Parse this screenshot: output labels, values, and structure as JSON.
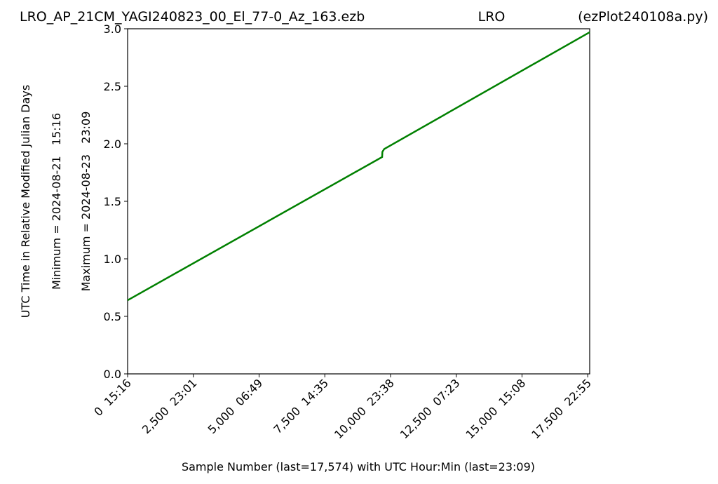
{
  "chart_data": {
    "type": "line",
    "title": "LRO_AP_21CM_YAGI240823_00_El_77-0_Az_163.ezb",
    "subtitle": "LRO",
    "annotations": [
      "(ezPlot240108a.py)"
    ],
    "xlabel": "Sample Number (last=17,574) with UTC Hour:Min (last=23:09)",
    "ylabel": "UTC Time in Relative Modified Julian Days",
    "ylabel_lines": [
      "Minimum = 2024-08-21   15:16",
      "Maximum = 2024-08-23   23:09"
    ],
    "x": [
      0,
      9680,
      9690,
      9760,
      17574
    ],
    "values": [
      0.64,
      1.885,
      1.93,
      1.955,
      2.97
    ],
    "color": "#008000",
    "xlim": [
      0,
      17574
    ],
    "xticks": [
      {
        "value": 0,
        "label": "0  15:16"
      },
      {
        "value": 2500,
        "label": "2,500  23:01"
      },
      {
        "value": 5000,
        "label": "5,000  06:49"
      },
      {
        "value": 7500,
        "label": "7,500  14:35"
      },
      {
        "value": 10000,
        "label": "10,000  23:38"
      },
      {
        "value": 12500,
        "label": "12,500  07:23"
      },
      {
        "value": 15000,
        "label": "15,000  15:08"
      },
      {
        "value": 17500,
        "label": "17,500  22:55"
      }
    ],
    "ylim": [
      0,
      3
    ],
    "yticks": [
      {
        "value": 0,
        "label": "0.0"
      },
      0.5,
      {
        "value": 1,
        "label": "1.0"
      },
      1.5,
      {
        "value": 2,
        "label": "2.0"
      },
      2.5,
      {
        "value": 3,
        "label": "3.0"
      }
    ],
    "grid": false
  }
}
